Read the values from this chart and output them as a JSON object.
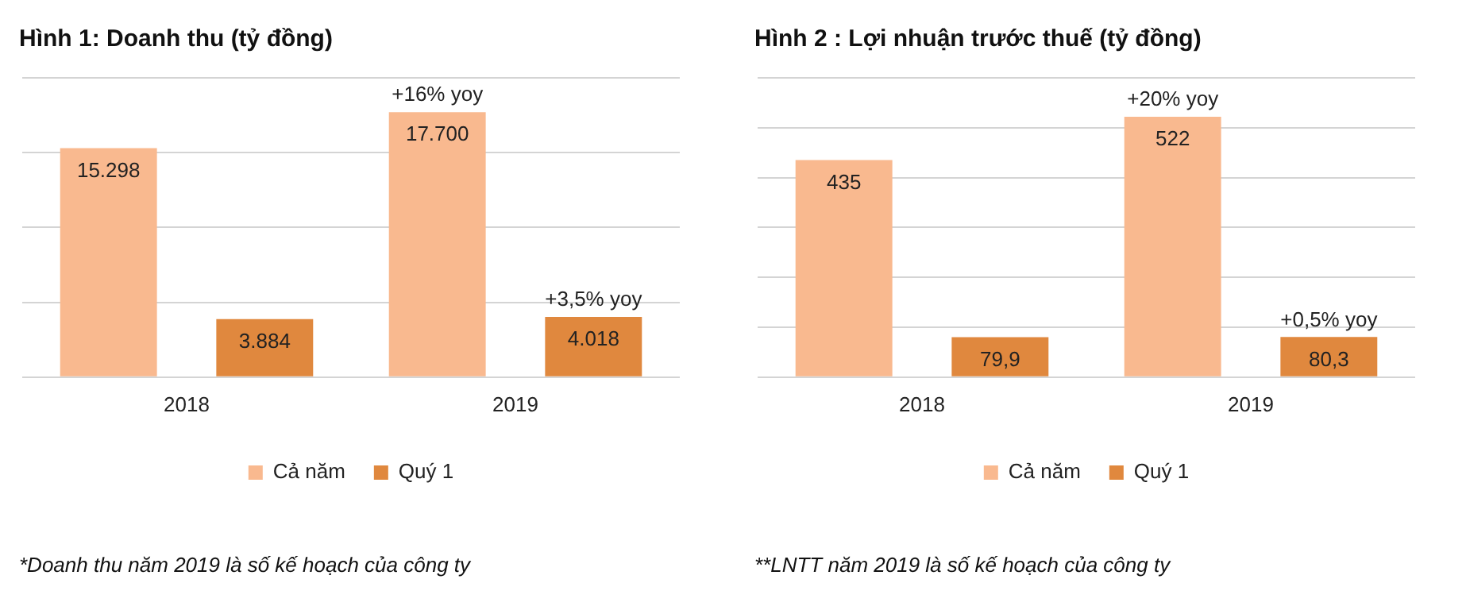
{
  "chart_data": [
    {
      "type": "bar",
      "title": "Hình 1: Doanh thu (tỷ đồng)",
      "categories": [
        "2018",
        "2019"
      ],
      "series": [
        {
          "name": "Cả năm",
          "color": "#f9b98f",
          "values": [
            15298,
            17700
          ],
          "value_labels": [
            "15.298",
            "17.700"
          ]
        },
        {
          "name": "Quý 1",
          "color": "#e0883e",
          "values": [
            3884,
            4018
          ],
          "value_labels": [
            "3.884",
            "4.018"
          ]
        }
      ],
      "ylim": [
        0,
        20000
      ],
      "yticks": [
        0,
        5000,
        10000,
        15000,
        20000
      ],
      "grid": "y",
      "tick_labels": "x",
      "legend": "bottom",
      "annotations": [
        "+16% yoy",
        "+3,5% yoy",
        "*Doanh thu năm 2019 là số kế hoạch của công ty"
      ]
    },
    {
      "type": "bar",
      "title": "Hình 2 : Lợi nhuận trước thuế (tỷ đồng)",
      "categories": [
        "2018",
        "2019"
      ],
      "series": [
        {
          "name": "Cả năm",
          "color": "#f9b98f",
          "values": [
            435,
            522
          ],
          "value_labels": [
            "435",
            "522"
          ]
        },
        {
          "name": "Quý 1",
          "color": "#e0883e",
          "values": [
            79.9,
            80.3
          ],
          "value_labels": [
            "79,9",
            "80,3"
          ]
        }
      ],
      "ylim": [
        0,
        600
      ],
      "yticks": [
        0,
        100,
        200,
        300,
        400,
        500,
        600
      ],
      "grid": "y",
      "tick_labels": "x",
      "legend": "bottom",
      "annotations": [
        "+20% yoy",
        "+0,5% yoy",
        "**LNTT năm 2019 là số kế hoạch của công ty"
      ]
    }
  ]
}
